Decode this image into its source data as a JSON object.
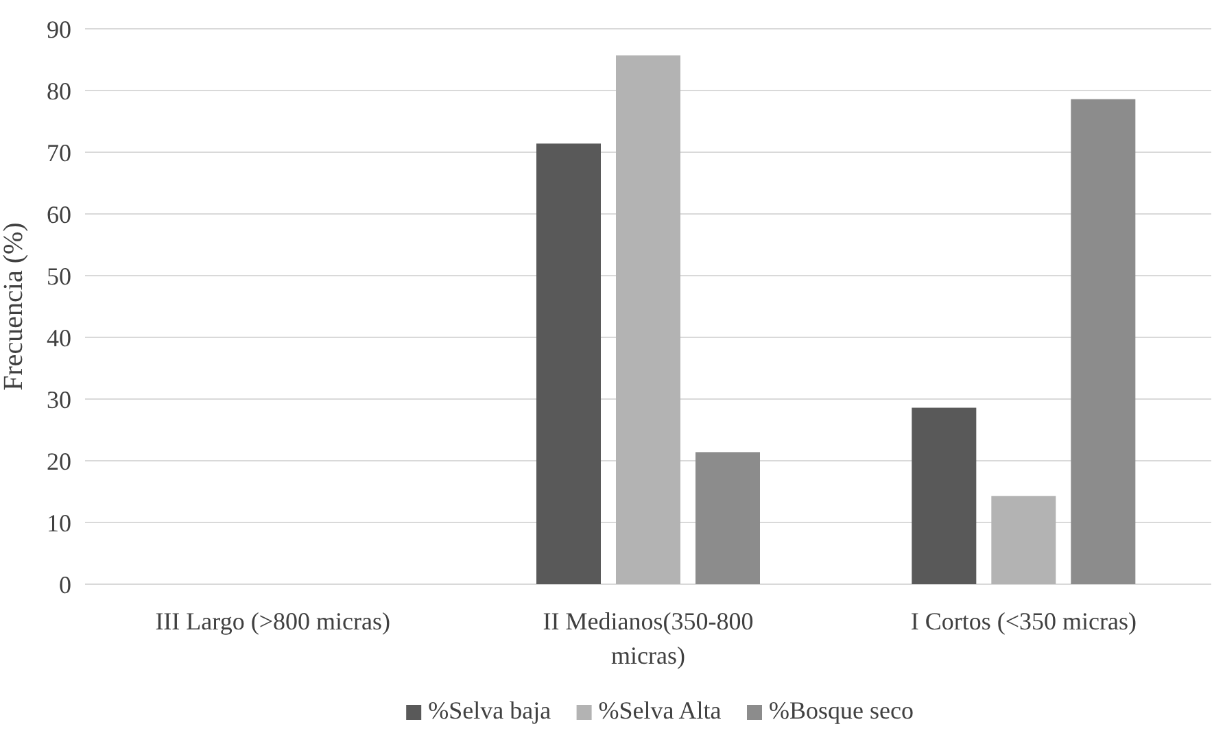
{
  "chart_data": {
    "type": "bar",
    "ylabel": "Frecuencia (%)",
    "categories": [
      "III Largo (>800 micras)",
      "II Medianos(350-800 micras)",
      "I Cortos (<350 micras)"
    ],
    "series": [
      {
        "name": "%Selva baja",
        "color": "#595959",
        "values": [
          0,
          71.4,
          28.6
        ]
      },
      {
        "name": "%Selva Alta",
        "color": "#b3b3b3",
        "values": [
          0,
          85.7,
          14.3
        ]
      },
      {
        "name": "%Bosque seco",
        "color": "#8c8c8c",
        "values": [
          0,
          21.4,
          78.6
        ]
      }
    ],
    "ylim": [
      0,
      90
    ],
    "yticks": [
      0,
      10,
      20,
      30,
      40,
      50,
      60,
      70,
      80,
      90
    ],
    "grid": "y",
    "legend": "bottom"
  }
}
